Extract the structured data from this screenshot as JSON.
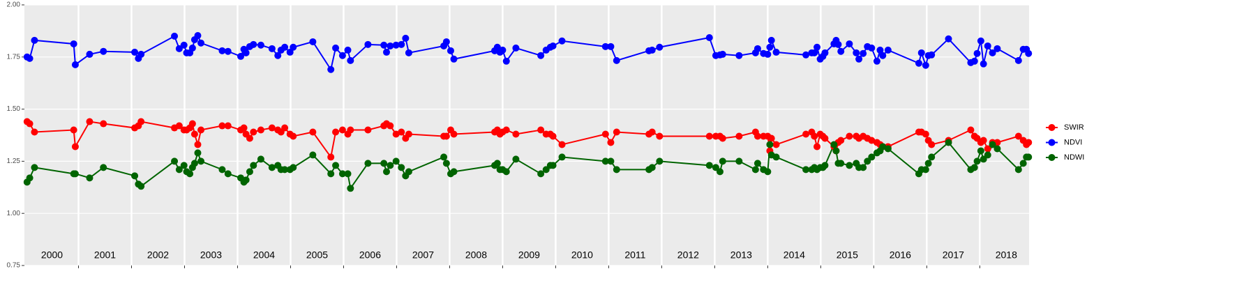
{
  "chart_data": {
    "type": "line",
    "x": [
      2000.03,
      2000.08,
      2000.17,
      2000.91,
      2000.94,
      2001.21,
      2001.47,
      2002.06,
      2002.13,
      2002.18,
      2002.81,
      2002.9,
      2002.99,
      2003.04,
      2003.1,
      2003.15,
      2003.19,
      2003.25,
      2003.31,
      2003.71,
      2003.82,
      2004.06,
      2004.12,
      2004.16,
      2004.23,
      2004.3,
      2004.44,
      2004.65,
      2004.76,
      2004.82,
      2004.89,
      2004.99,
      2005.05,
      2005.42,
      2005.76,
      2005.85,
      2005.98,
      2006.08,
      2006.13,
      2006.46,
      2006.76,
      2006.81,
      2006.88,
      2006.99,
      2007.09,
      2007.17,
      2007.23,
      2007.89,
      2007.94,
      2008.02,
      2008.08,
      2008.85,
      2008.9,
      2008.95,
      2009.0,
      2009.07,
      2009.25,
      2009.72,
      2009.82,
      2009.9,
      2009.95,
      2010.12,
      2010.94,
      2011.04,
      2011.15,
      2011.76,
      2011.82,
      2011.96,
      2012.9,
      2013.02,
      2013.1,
      2013.15,
      2013.46,
      2013.77,
      2013.81,
      2013.92,
      2014.0,
      2014.04,
      2014.07,
      2014.16,
      2014.72,
      2014.83,
      2014.88,
      2014.93,
      2014.99,
      2015.04,
      2015.08,
      2015.25,
      2015.29,
      2015.33,
      2015.38,
      2015.54,
      2015.67,
      2015.72,
      2015.8,
      2015.88,
      2015.96,
      2016.06,
      2016.12,
      2016.17,
      2016.27,
      2016.85,
      2016.9,
      2016.98,
      2017.03,
      2017.09,
      2017.41,
      2017.83,
      2017.9,
      2017.95,
      2018.02,
      2018.07,
      2018.15,
      2018.24,
      2018.33,
      2018.73,
      2018.82,
      2018.88,
      2018.92
    ],
    "series": [
      {
        "name": "SWIR",
        "color": "#ff0000",
        "values": [
          1.44,
          1.43,
          1.39,
          1.4,
          1.32,
          1.44,
          1.43,
          1.41,
          1.42,
          1.44,
          1.41,
          1.42,
          1.4,
          1.4,
          1.41,
          1.43,
          1.38,
          1.33,
          1.4,
          1.42,
          1.42,
          1.4,
          1.41,
          1.38,
          1.36,
          1.39,
          1.4,
          1.41,
          1.4,
          1.39,
          1.41,
          1.38,
          1.37,
          1.39,
          1.27,
          1.39,
          1.4,
          1.38,
          1.4,
          1.4,
          1.42,
          1.43,
          1.42,
          1.38,
          1.39,
          1.36,
          1.38,
          1.37,
          1.37,
          1.4,
          1.38,
          1.39,
          1.4,
          1.38,
          1.39,
          1.4,
          1.38,
          1.4,
          1.38,
          1.38,
          1.37,
          1.33,
          1.38,
          1.34,
          1.39,
          1.38,
          1.39,
          1.37,
          1.37,
          1.37,
          1.37,
          1.36,
          1.37,
          1.39,
          1.37,
          1.37,
          1.37,
          1.3,
          1.36,
          1.33,
          1.38,
          1.39,
          1.37,
          1.32,
          1.38,
          1.37,
          1.36,
          1.32,
          1.3,
          1.34,
          1.35,
          1.37,
          1.37,
          1.36,
          1.37,
          1.36,
          1.35,
          1.34,
          1.33,
          1.32,
          1.32,
          1.39,
          1.39,
          1.38,
          1.35,
          1.33,
          1.35,
          1.4,
          1.37,
          1.36,
          1.34,
          1.35,
          1.31,
          1.34,
          1.34,
          1.37,
          1.35,
          1.33,
          1.34
        ]
      },
      {
        "name": "NDVI",
        "color": "#0000ff",
        "values": [
          1.75,
          1.743,
          1.83,
          1.813,
          1.713,
          1.763,
          1.777,
          1.773,
          1.743,
          1.763,
          1.85,
          1.79,
          1.807,
          1.77,
          1.77,
          1.793,
          1.833,
          1.853,
          1.817,
          1.78,
          1.777,
          1.753,
          1.787,
          1.77,
          1.8,
          1.81,
          1.807,
          1.79,
          1.757,
          1.783,
          1.797,
          1.773,
          1.797,
          1.823,
          1.69,
          1.793,
          1.757,
          1.783,
          1.733,
          1.81,
          1.807,
          1.773,
          1.803,
          1.807,
          1.81,
          1.84,
          1.77,
          1.803,
          1.823,
          1.78,
          1.74,
          1.78,
          1.797,
          1.773,
          1.783,
          1.73,
          1.793,
          1.757,
          1.783,
          1.797,
          1.803,
          1.827,
          1.8,
          1.8,
          1.733,
          1.78,
          1.783,
          1.797,
          1.843,
          1.757,
          1.76,
          1.763,
          1.757,
          1.77,
          1.79,
          1.767,
          1.763,
          1.797,
          1.83,
          1.773,
          1.76,
          1.77,
          1.77,
          1.797,
          1.74,
          1.753,
          1.77,
          1.813,
          1.83,
          1.81,
          1.777,
          1.813,
          1.77,
          1.74,
          1.767,
          1.8,
          1.793,
          1.73,
          1.783,
          1.757,
          1.783,
          1.72,
          1.77,
          1.71,
          1.757,
          1.76,
          1.837,
          1.723,
          1.73,
          1.767,
          1.827,
          1.717,
          1.803,
          1.77,
          1.79,
          1.733,
          1.787,
          1.787,
          1.767
        ]
      },
      {
        "name": "NDWI",
        "color": "#006400",
        "values": [
          1.15,
          1.17,
          1.22,
          1.19,
          1.19,
          1.17,
          1.22,
          1.18,
          1.14,
          1.13,
          1.25,
          1.21,
          1.23,
          1.2,
          1.19,
          1.22,
          1.24,
          1.29,
          1.25,
          1.21,
          1.19,
          1.17,
          1.15,
          1.16,
          1.2,
          1.23,
          1.26,
          1.22,
          1.23,
          1.21,
          1.21,
          1.21,
          1.22,
          1.28,
          1.19,
          1.23,
          1.19,
          1.19,
          1.12,
          1.24,
          1.24,
          1.2,
          1.23,
          1.25,
          1.22,
          1.18,
          1.2,
          1.27,
          1.24,
          1.19,
          1.2,
          1.23,
          1.24,
          1.21,
          1.21,
          1.2,
          1.26,
          1.19,
          1.21,
          1.23,
          1.23,
          1.27,
          1.25,
          1.25,
          1.21,
          1.21,
          1.22,
          1.25,
          1.23,
          1.22,
          1.2,
          1.25,
          1.25,
          1.21,
          1.24,
          1.21,
          1.2,
          1.33,
          1.28,
          1.27,
          1.21,
          1.21,
          1.22,
          1.21,
          1.22,
          1.22,
          1.23,
          1.33,
          1.3,
          1.24,
          1.24,
          1.23,
          1.24,
          1.22,
          1.22,
          1.25,
          1.27,
          1.29,
          1.3,
          1.32,
          1.31,
          1.19,
          1.21,
          1.21,
          1.24,
          1.27,
          1.34,
          1.21,
          1.22,
          1.25,
          1.3,
          1.26,
          1.28,
          1.33,
          1.31,
          1.21,
          1.24,
          1.27,
          1.27
        ]
      }
    ],
    "xlim": [
      1999.98,
      2018.93
    ],
    "xticks": [
      2001,
      2002,
      2003,
      2004,
      2005,
      2006,
      2007,
      2008,
      2009,
      2010,
      2011,
      2012,
      2013,
      2014,
      2015,
      2016,
      2017,
      2018
    ],
    "year_labels": [
      2000,
      2001,
      2002,
      2003,
      2004,
      2005,
      2006,
      2007,
      2008,
      2009,
      2010,
      2011,
      2012,
      2013,
      2014,
      2015,
      2016,
      2017,
      2018
    ],
    "ylim": [
      0.75,
      2.0
    ],
    "yticks": [
      0.75,
      {
        "value": 1,
        "label": "1.00"
      },
      1.25,
      {
        "value": 1.5,
        "label": "1.50"
      },
      1.75,
      {
        "value": 2,
        "label": "2.00"
      }
    ],
    "grid": true,
    "legend": "right"
  }
}
